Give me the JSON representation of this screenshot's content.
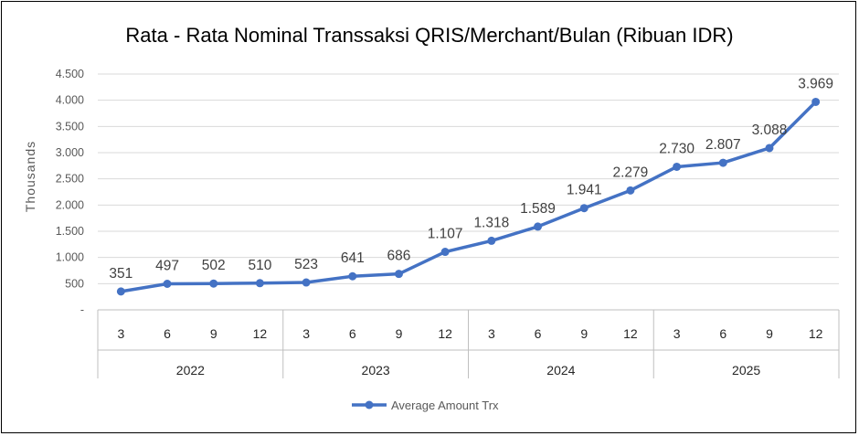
{
  "chart_data": {
    "type": "line",
    "title": "Rata - Rata Nominal Transsaksi QRIS/Merchant/Bulan (Ribuan IDR)",
    "ylabel": "Thousands",
    "xlabel": "",
    "ylim": [
      0,
      4500
    ],
    "yticks": [
      "-",
      "500",
      "1.000",
      "1.500",
      "2.000",
      "2.500",
      "3.000",
      "3.500",
      "4.000",
      "4.500"
    ],
    "grid": true,
    "legend_position": "bottom",
    "groups": [
      {
        "label": "2022",
        "months": [
          "3",
          "6",
          "9",
          "12"
        ]
      },
      {
        "label": "2023",
        "months": [
          "3",
          "6",
          "9",
          "12"
        ]
      },
      {
        "label": "2024",
        "months": [
          "3",
          "6",
          "9",
          "12"
        ]
      },
      {
        "label": "2025",
        "months": [
          "3",
          "6",
          "9",
          "12"
        ]
      }
    ],
    "series": [
      {
        "name": "Average Amount Trx",
        "color": "#4472C4",
        "values": [
          351,
          497,
          502,
          510,
          523,
          641,
          686,
          1107,
          1318,
          1589,
          1941,
          2279,
          2730,
          2807,
          3088,
          3969
        ],
        "labels": [
          "351",
          "497",
          "502",
          "510",
          "523",
          "641",
          "686",
          "1.107",
          "1.318",
          "1.589",
          "1.941",
          "2.279",
          "2.730",
          "2.807",
          "3.088",
          "3.969"
        ]
      }
    ]
  }
}
